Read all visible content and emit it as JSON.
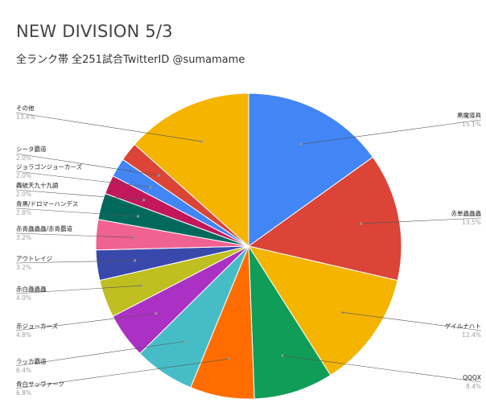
{
  "chart_data": {
    "type": "pie",
    "title": "NEW DIVISION 5/3",
    "subtitle": "全ランク帯 全251試合TwitterID @sumamame",
    "slices": [
      {
        "label": "黒魔導具",
        "value": 15.1,
        "percent_label": "15.1%",
        "color": "#4285f4"
      },
      {
        "label": "赤単蟲蟲蟲",
        "value": 13.5,
        "percent_label": "13.5%",
        "color": "#db4437"
      },
      {
        "label": "ゲイルナハト",
        "value": 12.4,
        "percent_label": "12.4%",
        "color": "#f4b400"
      },
      {
        "label": "QQQX",
        "value": 8.4,
        "percent_label": "8.4%",
        "color": "#0f9d58"
      },
      {
        "label": "青白サッヴァーク",
        "value": 6.8,
        "percent_label": "6.8%",
        "color": "#ff6d00"
      },
      {
        "label": "ラッカ覇道",
        "value": 6.4,
        "percent_label": "6.4%",
        "color": "#46bdc6"
      },
      {
        "label": "赤ジョーカーズ",
        "value": 4.8,
        "percent_label": "4.8%",
        "color": "#ab30c4"
      },
      {
        "label": "赤白蟲蟲蟲",
        "value": 4.0,
        "percent_label": "4.0%",
        "color": "#c0bf22"
      },
      {
        "label": "アウトレイジ",
        "value": 3.2,
        "percent_label": "3.2%",
        "color": "#3949ab"
      },
      {
        "label": "赤青蟲蟲蟲/赤青覇道",
        "value": 3.2,
        "percent_label": "3.2%",
        "color": "#f06292"
      },
      {
        "label": "青黒/ドロマーハンデス",
        "value": 2.8,
        "percent_label": "2.8%",
        "color": "#00695c"
      },
      {
        "label": "轟破天九十九語",
        "value": 2.0,
        "percent_label": "2.0%",
        "color": "#c2185b"
      },
      {
        "label": "ジョラゴンジョーカーズ",
        "value": 2.0,
        "percent_label": "2.0%",
        "color": "#4285f4"
      },
      {
        "label": "シータ覇道",
        "value": 2.0,
        "percent_label": "2.0%",
        "color": "#db4437"
      },
      {
        "label": "その他",
        "value": 13.4,
        "percent_label": "13.4%",
        "color": "#f4b400"
      }
    ]
  }
}
